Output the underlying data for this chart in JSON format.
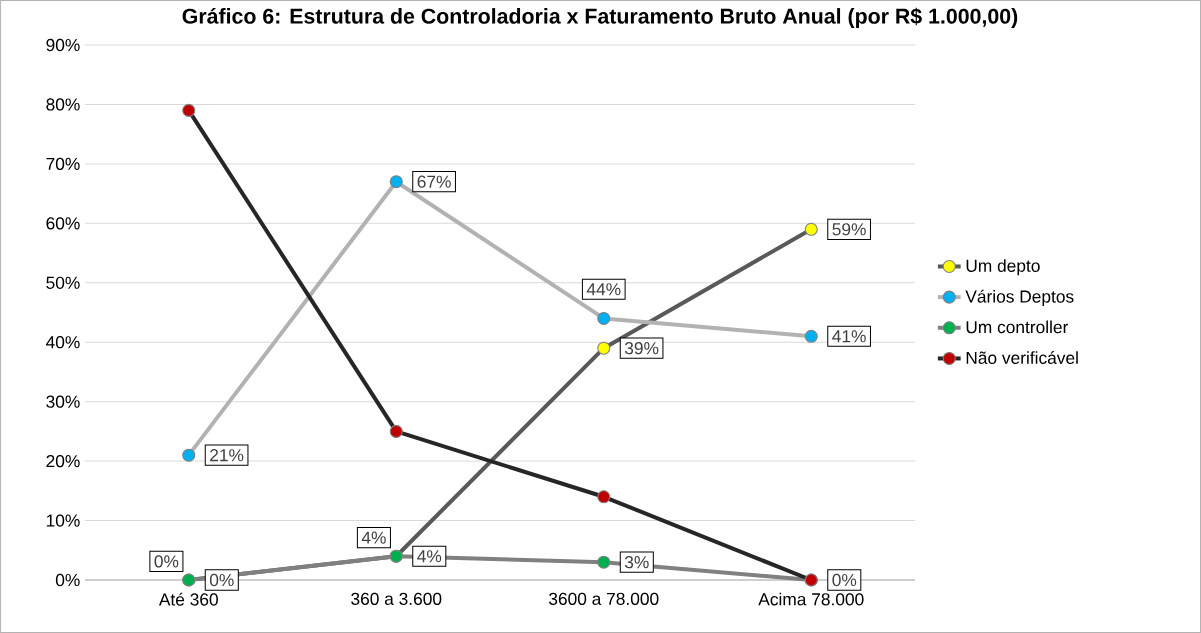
{
  "chart_data": {
    "type": "line",
    "title": "Gráfico 6: Estrutura de Controladoria x Faturamento Bruto Anual (por R$ 1.000,00)",
    "categories": [
      "Até  360",
      "360 a 3.600",
      "3600 a 78.000",
      "Acima 78.000"
    ],
    "ylim": [
      0,
      90
    ],
    "yticks": [
      {
        "value": 0,
        "label": "0%"
      },
      {
        "value": 10,
        "label": "10%"
      },
      {
        "value": 20,
        "label": "20%"
      },
      {
        "value": 30,
        "label": "30%"
      },
      {
        "value": 40,
        "label": "40%"
      },
      {
        "value": 50,
        "label": "50%"
      },
      {
        "value": 60,
        "label": "60%"
      },
      {
        "value": 70,
        "label": "70%"
      },
      {
        "value": 80,
        "label": "80%"
      },
      {
        "value": 90,
        "label": "90%"
      }
    ],
    "grid": "y",
    "legend": "right",
    "marker": "circle",
    "line_style": "solid",
    "series": [
      {
        "name": "Um depto",
        "color": "#ffff00",
        "values": [
          0,
          4,
          39,
          59
        ],
        "value_labels": [
          "0%",
          "4%",
          "39%",
          "59%"
        ]
      },
      {
        "name": "Vários Deptos",
        "color": "#00b0f0",
        "values": [
          21,
          67,
          44,
          41
        ],
        "value_labels": [
          "21%",
          "67%",
          "44%",
          "41%"
        ]
      },
      {
        "name": "Um controller",
        "color": "#00b050",
        "values": [
          0,
          4,
          3,
          0
        ],
        "value_labels": [
          "0%",
          "4%",
          "3%",
          "0%"
        ]
      },
      {
        "name": "Não verificável",
        "color": "#c00000",
        "values": [
          79,
          25,
          14,
          0
        ]
      }
    ]
  }
}
